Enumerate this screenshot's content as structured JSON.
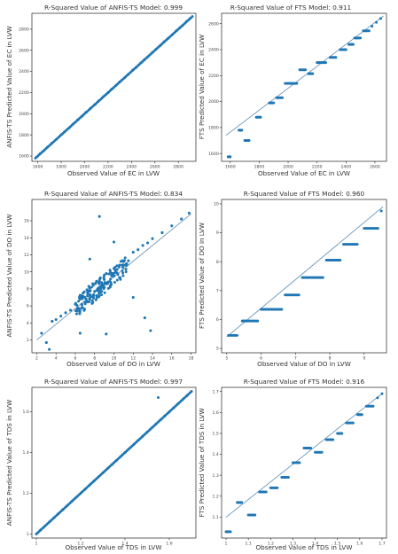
{
  "colors": {
    "point": "#1f77b4",
    "fit_line": "#5b8db8",
    "frame": "#222222"
  },
  "chart_data": [
    {
      "type": "scatter",
      "title": "R-Squared Value of ANFIS-TS Model: 0.999",
      "xlabel": "Observed Value of EC in LVW",
      "ylabel": "ANFIS-TS Predicted Value of EC in LVW",
      "xlim": [
        1550,
        2950
      ],
      "ylim": [
        1550,
        2950
      ],
      "xticks": [
        1600,
        1800,
        2000,
        2200,
        2400,
        2600,
        2800
      ],
      "yticks": [
        1600,
        1800,
        2000,
        2200,
        2400,
        2600,
        2800
      ],
      "fit_line": [
        [
          1580,
          1580
        ],
        [
          2920,
          2920
        ]
      ],
      "pattern": "identity",
      "series": [
        {
          "values": [
            [
              1590,
              1590
            ],
            [
              1620,
              1622
            ],
            [
              1650,
              1649
            ],
            [
              1680,
              1682
            ],
            [
              1720,
              1721
            ],
            [
              1760,
              1759
            ],
            [
              1800,
              1802
            ],
            [
              1830,
              1830
            ],
            [
              1870,
              1868
            ],
            [
              1900,
              1902
            ],
            [
              1940,
              1941
            ],
            [
              1980,
              1979
            ],
            [
              2010,
              2012
            ],
            [
              2050,
              2051
            ],
            [
              2090,
              2088
            ],
            [
              2120,
              2121
            ],
            [
              2160,
              2162
            ],
            [
              2200,
              2199
            ],
            [
              2230,
              2232
            ],
            [
              2270,
              2270
            ],
            [
              2300,
              2302
            ],
            [
              2340,
              2339
            ],
            [
              2370,
              2371
            ],
            [
              2410,
              2412
            ],
            [
              2440,
              2438
            ],
            [
              2480,
              2481
            ],
            [
              2510,
              2512
            ],
            [
              2540,
              2539
            ],
            [
              2580,
              2581
            ],
            [
              2610,
              2611
            ],
            [
              2650,
              2648
            ],
            [
              2680,
              2682
            ],
            [
              2710,
              2710
            ],
            [
              2750,
              2749
            ],
            [
              2780,
              2782
            ],
            [
              2810,
              2811
            ],
            [
              2840,
              2838
            ],
            [
              2870,
              2872
            ],
            [
              2900,
              2901
            ]
          ]
        }
      ]
    },
    {
      "type": "scatter",
      "title": "R-Squared Value of FTS Model: 0.911",
      "xlabel": "Observed Value of EC in LVW",
      "ylabel": "FTS Predicted Value of EC in LVW",
      "xlim": [
        1540,
        2680
      ],
      "ylim": [
        1540,
        2680
      ],
      "xticks": [
        1600,
        1800,
        2000,
        2200,
        2400,
        2600
      ],
      "yticks": [
        1600,
        1800,
        2000,
        2200,
        2400,
        2600
      ],
      "fit_line": [
        [
          1570,
          1740
        ],
        [
          2660,
          2660
        ]
      ],
      "pattern": "steps",
      "series": [
        {
          "values": [
            [
              1585,
              1575
            ],
            [
              1600,
              1575
            ],
            [
              1660,
              1780
            ],
            [
              1680,
              1780
            ],
            [
              1700,
              1700
            ],
            [
              1730,
              1700
            ],
            [
              1780,
              1880
            ],
            [
              1810,
              1880
            ],
            [
              1870,
              1990
            ],
            [
              1900,
              1990
            ],
            [
              1920,
              2030
            ],
            [
              1960,
              2030
            ],
            [
              1980,
              2140
            ],
            [
              2020,
              2140
            ],
            [
              2060,
              2140
            ],
            [
              2080,
              2245
            ],
            [
              2120,
              2245
            ],
            [
              2140,
              2215
            ],
            [
              2170,
              2215
            ],
            [
              2200,
              2300
            ],
            [
              2230,
              2300
            ],
            [
              2260,
              2300
            ],
            [
              2290,
              2340
            ],
            [
              2330,
              2340
            ],
            [
              2360,
              2400
            ],
            [
              2400,
              2400
            ],
            [
              2420,
              2440
            ],
            [
              2450,
              2440
            ],
            [
              2460,
              2490
            ],
            [
              2500,
              2490
            ],
            [
              2520,
              2545
            ],
            [
              2560,
              2545
            ],
            [
              2580,
              2580
            ],
            [
              2610,
              2610
            ],
            [
              2640,
              2640
            ]
          ]
        }
      ]
    },
    {
      "type": "scatter",
      "title": "R-Squared Value of ANFIS-TS Model: 0.834",
      "xlabel": "Observed Value of DO in LVW",
      "ylabel": "ANFIS-TS Predicted Value of DO in LVW",
      "xlim": [
        1.5,
        18.5
      ],
      "ylim": [
        0.5,
        18.5
      ],
      "xticks": [
        2,
        4,
        6,
        8,
        10,
        12,
        14,
        16,
        18
      ],
      "yticks": [
        2,
        4,
        6,
        8,
        10,
        12,
        14,
        16
      ],
      "fit_line": [
        [
          2,
          2
        ],
        [
          18,
          16.8
        ]
      ],
      "pattern": "cloud",
      "series": [
        {
          "values": [
            [
              2.5,
              2.8
            ],
            [
              3,
              1.7
            ],
            [
              3.3,
              0.9
            ],
            [
              3.6,
              4.2
            ],
            [
              4,
              4.4
            ],
            [
              4.5,
              4.8
            ],
            [
              5,
              5.2
            ],
            [
              5.5,
              5.5
            ],
            [
              6,
              6.2
            ],
            [
              6.2,
              5.4
            ],
            [
              6.5,
              6.8
            ],
            [
              6.8,
              7.5
            ],
            [
              7,
              6.4
            ],
            [
              7.2,
              7.9
            ],
            [
              7.4,
              8.3
            ],
            [
              7.6,
              7.1
            ],
            [
              7.8,
              8.6
            ],
            [
              8,
              7.7
            ],
            [
              8.2,
              8.9
            ],
            [
              8.4,
              8.1
            ],
            [
              8.6,
              9.3
            ],
            [
              8.8,
              8.5
            ],
            [
              9,
              9.1
            ],
            [
              9.2,
              9.8
            ],
            [
              9.4,
              8.8
            ],
            [
              9.6,
              10.2
            ],
            [
              9.8,
              9.5
            ],
            [
              10,
              10.4
            ],
            [
              10.3,
              9.9
            ],
            [
              10.6,
              10.8
            ],
            [
              11,
              11.2
            ],
            [
              11.5,
              11.3
            ],
            [
              12,
              12.3
            ],
            [
              12.5,
              12.6
            ],
            [
              13,
              13.1
            ],
            [
              13.5,
              13.4
            ],
            [
              14,
              13.9
            ],
            [
              15,
              14.6
            ],
            [
              16,
              15.4
            ],
            [
              17,
              16.2
            ],
            [
              17.8,
              16.9
            ],
            [
              8.5,
              16.5
            ],
            [
              6.5,
              2.8
            ],
            [
              9.2,
              2.7
            ],
            [
              13.2,
              4.6
            ],
            [
              13.8,
              3.1
            ],
            [
              12,
              7
            ],
            [
              7.5,
              11.5
            ],
            [
              10,
              13.5
            ]
          ]
        }
      ]
    },
    {
      "type": "scatter",
      "title": "R-Squared Value of FTS Model: 0.960",
      "xlabel": "Observed Value of DO in LVW",
      "ylabel": "FTS Predicted Value of DO in LVW",
      "xlim": [
        4.85,
        9.65
      ],
      "ylim": [
        4.85,
        10.15
      ],
      "xticks": [
        5,
        6,
        7,
        8,
        9
      ],
      "yticks": [
        5,
        6,
        7,
        8,
        9,
        10
      ],
      "fit_line": [
        [
          5,
          5.4
        ],
        [
          9.55,
          9.9
        ]
      ],
      "pattern": "steps",
      "series": [
        {
          "values": [
            [
              5.05,
              5.45
            ],
            [
              5.3,
              5.45
            ],
            [
              5.45,
              5.95
            ],
            [
              5.55,
              5.95
            ],
            [
              5.7,
              5.95
            ],
            [
              5.9,
              5.95
            ],
            [
              6,
              6.35
            ],
            [
              6.2,
              6.35
            ],
            [
              6.4,
              6.35
            ],
            [
              6.6,
              6.35
            ],
            [
              6.7,
              6.85
            ],
            [
              6.9,
              6.85
            ],
            [
              7.1,
              6.85
            ],
            [
              7.2,
              7.45
            ],
            [
              7.4,
              7.45
            ],
            [
              7.6,
              7.45
            ],
            [
              7.8,
              7.45
            ],
            [
              7.9,
              8.05
            ],
            [
              8.1,
              8.05
            ],
            [
              8.3,
              8.05
            ],
            [
              8.4,
              8.6
            ],
            [
              8.6,
              8.6
            ],
            [
              8.8,
              8.6
            ],
            [
              9,
              9.15
            ],
            [
              9.2,
              9.15
            ],
            [
              9.4,
              9.15
            ],
            [
              9.5,
              9.75
            ]
          ]
        }
      ]
    },
    {
      "type": "scatter",
      "title": "R-Squared Value of ANFIS-TS Model: 0.997",
      "xlabel": "Observed Value of TDS in LVW",
      "ylabel": "ANFIS-TS Predicted Value of TDS in LVW",
      "xlim": [
        0.98,
        1.72
      ],
      "ylim": [
        0.98,
        1.72
      ],
      "xticks": [
        1.0,
        1.2,
        1.4,
        1.6
      ],
      "yticks": [
        1.0,
        1.2,
        1.4,
        1.6
      ],
      "fit_line": [
        [
          1.0,
          1.0
        ],
        [
          1.7,
          1.7
        ]
      ],
      "pattern": "identity",
      "series": [
        {
          "values": [
            [
              1.0,
              1.0
            ],
            [
              1.02,
              1.02
            ],
            [
              1.04,
              1.04
            ],
            [
              1.06,
              1.06
            ],
            [
              1.08,
              1.08
            ],
            [
              1.1,
              1.1
            ],
            [
              1.12,
              1.12
            ],
            [
              1.14,
              1.14
            ],
            [
              1.16,
              1.16
            ],
            [
              1.18,
              1.18
            ],
            [
              1.2,
              1.2
            ],
            [
              1.22,
              1.22
            ],
            [
              1.24,
              1.24
            ],
            [
              1.26,
              1.26
            ],
            [
              1.28,
              1.28
            ],
            [
              1.3,
              1.3
            ],
            [
              1.32,
              1.32
            ],
            [
              1.34,
              1.34
            ],
            [
              1.36,
              1.36
            ],
            [
              1.38,
              1.38
            ],
            [
              1.4,
              1.4
            ],
            [
              1.42,
              1.42
            ],
            [
              1.44,
              1.44
            ],
            [
              1.46,
              1.46
            ],
            [
              1.48,
              1.48
            ],
            [
              1.5,
              1.5
            ],
            [
              1.52,
              1.52
            ],
            [
              1.54,
              1.54
            ],
            [
              1.56,
              1.56
            ],
            [
              1.58,
              1.58
            ],
            [
              1.6,
              1.6
            ],
            [
              1.62,
              1.62
            ],
            [
              1.64,
              1.64
            ],
            [
              1.66,
              1.66
            ],
            [
              1.68,
              1.68
            ],
            [
              1.7,
              1.7
            ],
            [
              1.55,
              1.67
            ]
          ]
        }
      ]
    },
    {
      "type": "scatter",
      "title": "R-Squared Value of FTS Model: 0.916",
      "xlabel": "Observed Value of TDS in LVW",
      "ylabel": "FTS Predicted Value of TDS in LVW",
      "xlim": [
        0.98,
        1.72
      ],
      "ylim": [
        1.0,
        1.72
      ],
      "xticks": [
        1.0,
        1.1,
        1.2,
        1.3,
        1.4,
        1.5,
        1.6,
        1.7
      ],
      "yticks": [
        1.1,
        1.2,
        1.3,
        1.4,
        1.5,
        1.6,
        1.7
      ],
      "fit_line": [
        [
          1.0,
          1.1
        ],
        [
          1.7,
          1.69
        ]
      ],
      "pattern": "steps",
      "series": [
        {
          "values": [
            [
              1.0,
              1.03
            ],
            [
              1.02,
              1.03
            ],
            [
              1.05,
              1.17
            ],
            [
              1.07,
              1.17
            ],
            [
              1.1,
              1.11
            ],
            [
              1.13,
              1.11
            ],
            [
              1.15,
              1.22
            ],
            [
              1.18,
              1.22
            ],
            [
              1.2,
              1.24
            ],
            [
              1.23,
              1.24
            ],
            [
              1.25,
              1.29
            ],
            [
              1.28,
              1.29
            ],
            [
              1.3,
              1.36
            ],
            [
              1.33,
              1.36
            ],
            [
              1.35,
              1.43
            ],
            [
              1.38,
              1.43
            ],
            [
              1.4,
              1.41
            ],
            [
              1.43,
              1.41
            ],
            [
              1.45,
              1.47
            ],
            [
              1.48,
              1.47
            ],
            [
              1.5,
              1.5
            ],
            [
              1.52,
              1.5
            ],
            [
              1.54,
              1.55
            ],
            [
              1.57,
              1.55
            ],
            [
              1.59,
              1.59
            ],
            [
              1.61,
              1.59
            ],
            [
              1.63,
              1.63
            ],
            [
              1.66,
              1.63
            ],
            [
              1.68,
              1.67
            ],
            [
              1.7,
              1.69
            ]
          ]
        }
      ]
    }
  ]
}
